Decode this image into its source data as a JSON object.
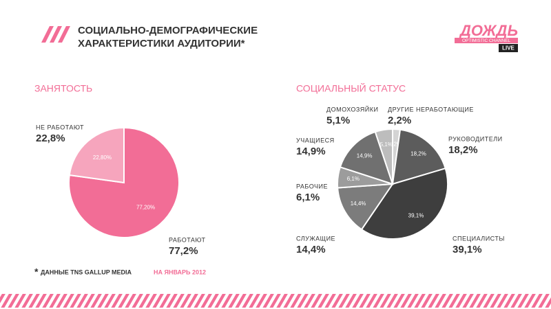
{
  "header": {
    "title_lines": [
      "СОЦИАЛЬНО-ДЕМОГРАФИЧЕСКИЕ",
      "ХАРАКТЕРИСТИКИ АУДИТОРИИ*"
    ]
  },
  "logo": {
    "name": "ДОЖДЬ",
    "tagline": "OPTIMISTIC CHANNEL",
    "live": "LIVE"
  },
  "footnote": {
    "mark": "*",
    "source": "ДАННЫЕ TNS GALLUP MEDIA",
    "period": "НА ЯНВАРЬ 2012"
  },
  "chart_data": [
    {
      "type": "pie",
      "title": "ЗАНЯТОСТЬ",
      "categories": [
        "РАБОТАЮТ",
        "НЕ РАБОТАЮТ"
      ],
      "values": [
        77.2,
        22.8
      ],
      "value_labels": [
        "77,2%",
        "22,8%"
      ],
      "slice_labels": [
        "77,20%",
        "22,80%"
      ],
      "colors": [
        "#f26d96",
        "#f6a5bd"
      ]
    },
    {
      "type": "pie",
      "title": "СОЦИАЛЬНЫЙ СТАТУС",
      "categories": [
        "ДРУГИЕ НЕРАБОТАЮЩИЕ",
        "РУКОВОДИТЕЛИ",
        "СПЕЦИАЛИСТЫ",
        "СЛУЖАЩИЕ",
        "РАБОЧИЕ",
        "УЧАЩИЕСЯ",
        "ДОМОХОЗЯЙКИ"
      ],
      "values": [
        2.2,
        18.2,
        39.1,
        14.4,
        6.1,
        14.9,
        5.1
      ],
      "value_labels": [
        "2,2%",
        "18,2%",
        "39,1%",
        "14,4%",
        "6,1%",
        "14,9%",
        "5,1%"
      ],
      "slice_labels": [
        "2,2%",
        "18,2%",
        "39,1%",
        "14,4%",
        "6,1%",
        "14,9%",
        "5,1%"
      ],
      "colors": [
        "#d4d4d4",
        "#5c5c5c",
        "#3e3e3e",
        "#7c7c7c",
        "#9c9c9c",
        "#707070",
        "#bdbdbd"
      ]
    }
  ]
}
